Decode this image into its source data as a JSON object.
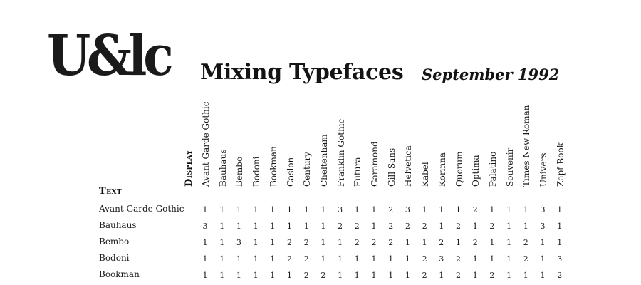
{
  "logo": {
    "text": "U&lc"
  },
  "header": {
    "title": "Mixing Typefaces",
    "date": "September 1992"
  },
  "table": {
    "display_label": "Display",
    "text_label": "Text",
    "columns": [
      "Avant Garde Gothic",
      "Bauhaus",
      "Bembo",
      "Bodoni",
      "Bookman",
      "Caslon",
      "Century",
      "Cheltenham",
      "Franklin Gothic",
      "Futura",
      "Garamond",
      "Gill Sans",
      "Helvetica",
      "Kabel",
      "Korinna",
      "Quorum",
      "Optima",
      "Palatino",
      "Souvenir",
      "Times New Roman",
      "Univers",
      "Zapf Book"
    ],
    "rows": [
      {
        "label": "Avant Garde Gothic",
        "values": [
          "1",
          "1",
          "1",
          "1",
          "1",
          "1",
          "1",
          "1",
          "3",
          "1",
          "1",
          "2",
          "3",
          "1",
          "1",
          "1",
          "2",
          "1",
          "1",
          "1",
          "3",
          "1"
        ]
      },
      {
        "label": "Bauhaus",
        "values": [
          "3",
          "1",
          "1",
          "1",
          "1",
          "1",
          "1",
          "1",
          "2",
          "2",
          "1",
          "2",
          "2",
          "2",
          "1",
          "2",
          "1",
          "2",
          "1",
          "1",
          "3",
          "1"
        ]
      },
      {
        "label": "Bembo",
        "values": [
          "1",
          "1",
          "3",
          "1",
          "1",
          "2",
          "2",
          "1",
          "1",
          "2",
          "2",
          "2",
          "1",
          "1",
          "2",
          "1",
          "2",
          "1",
          "1",
          "2",
          "1",
          "1"
        ]
      },
      {
        "label": "Bodoni",
        "values": [
          "1",
          "1",
          "1",
          "1",
          "1",
          "2",
          "2",
          "1",
          "1",
          "1",
          "1",
          "1",
          "1",
          "2",
          "3",
          "2",
          "1",
          "1",
          "1",
          "2",
          "1",
          "3"
        ]
      },
      {
        "label": "Bookman",
        "values": [
          "1",
          "1",
          "1",
          "1",
          "1",
          "1",
          "2",
          "2",
          "1",
          "1",
          "1",
          "1",
          "1",
          "2",
          "1",
          "2",
          "1",
          "2",
          "1",
          "1",
          "1",
          "2"
        ]
      }
    ]
  }
}
